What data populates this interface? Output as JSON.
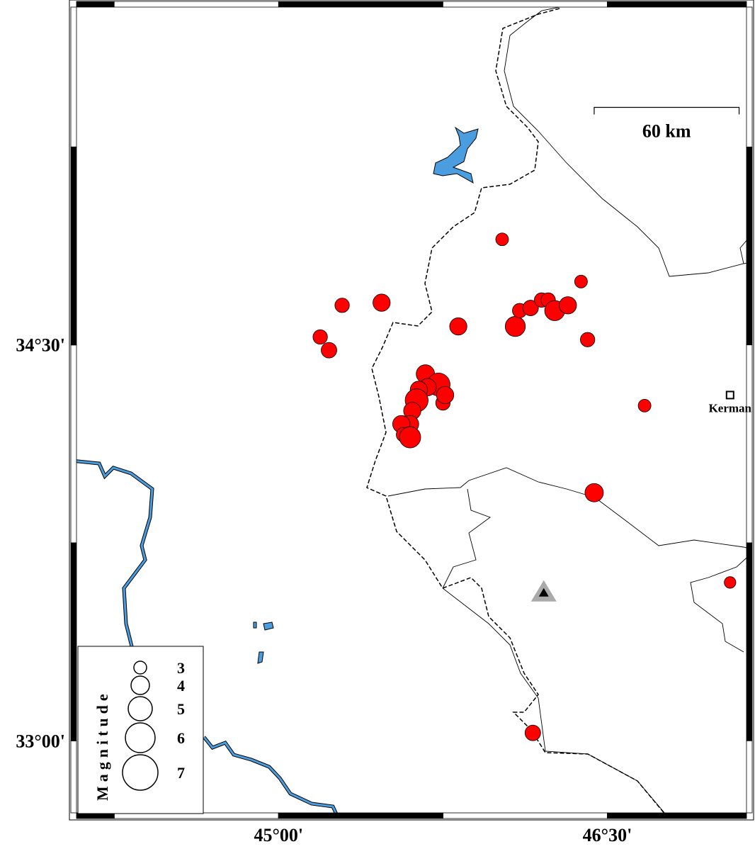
{
  "map": {
    "xlim": [
      44.078,
      47.135
    ],
    "ylim": [
      32.727,
      35.78
    ],
    "xticks": [
      {
        "value": 45,
        "label": "45°00'"
      },
      {
        "value": 46.5,
        "label": "46°30'"
      }
    ],
    "yticks": [
      {
        "value": 34.5,
        "label": "34°30'"
      },
      {
        "value": 33,
        "label": "33°00'"
      }
    ],
    "xframe": [
      44.25,
      45,
      45.75,
      46.5
    ],
    "yframe": [
      35.25,
      34.5,
      33.75,
      33
    ],
    "event_color": "#ff0000",
    "events": {
      "lon": [
        46.02,
        46.38,
        45.29,
        45.47,
        45.19,
        45.23,
        45.82,
        46.08,
        46.1,
        46.15,
        46.2,
        46.23,
        46.26,
        46.32,
        46.41,
        46.67,
        46.44,
        47.06,
        46.16,
        45.67,
        45.73,
        45.68,
        45.64,
        45.75,
        45.76,
        45.63,
        45.61,
        45.6,
        45.56,
        45.57,
        45.6
      ],
      "lat": [
        34.9,
        34.74,
        34.65,
        34.66,
        34.53,
        34.48,
        34.57,
        34.57,
        34.63,
        34.64,
        34.67,
        34.67,
        34.63,
        34.65,
        34.52,
        34.27,
        33.94,
        33.6,
        33.03,
        34.39,
        34.35,
        34.34,
        34.33,
        34.28,
        34.31,
        34.29,
        34.25,
        34.2,
        34.2,
        34.16,
        34.15
      ],
      "magnitude": [
        3.0,
        3.0,
        3.3,
        3.8,
        3.3,
        3.5,
        3.8,
        4.3,
        3.3,
        3.5,
        3.3,
        3.3,
        4.3,
        3.8,
        3.3,
        3.0,
        4.0,
        2.8,
        3.5,
        4.0,
        4.8,
        3.8,
        3.8,
        3.3,
        3.8,
        4.8,
        3.8,
        3.8,
        3.8,
        3.3,
        4.5
      ]
    },
    "station": {
      "lon": 46.21,
      "lat": 33.56
    },
    "city": {
      "name": "Kerman",
      "lon": 47.06,
      "lat": 34.31
    },
    "scale_bar": {
      "length_km": 60,
      "label": "60 km",
      "lon": 46.44,
      "lat": 35.4
    },
    "legend": {
      "title": "Magnitude",
      "magnitudes": [
        3,
        4,
        5,
        6,
        7
      ]
    }
  }
}
